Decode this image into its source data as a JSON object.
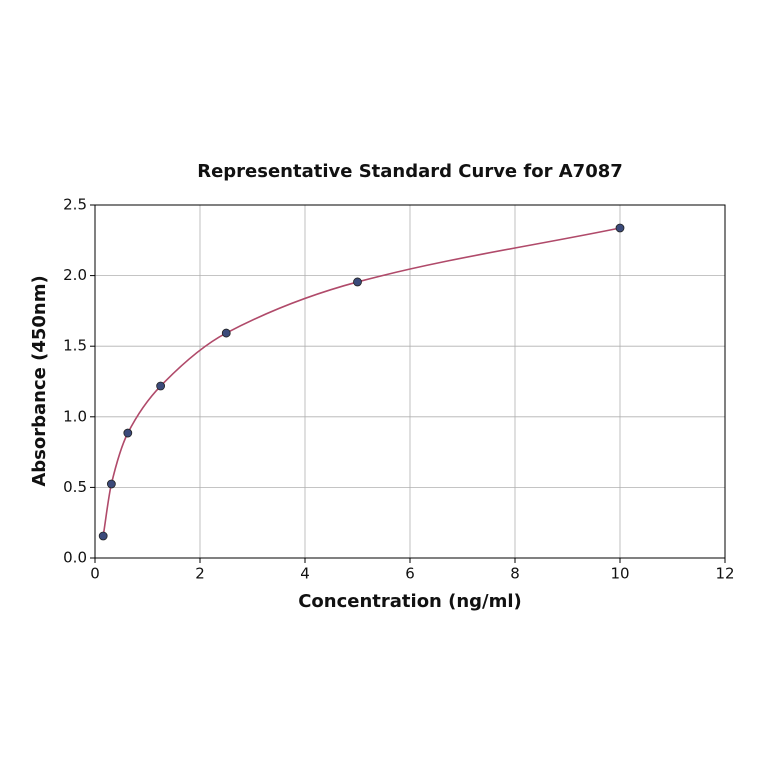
{
  "chart_data": {
    "type": "scatter",
    "title": "Representative Standard Curve for A7087",
    "xlabel": "Concentration (ng/ml)",
    "ylabel": "Absorbance (450nm)",
    "x": [
      0.156,
      0.312,
      0.625,
      1.25,
      2.5,
      5,
      10
    ],
    "values": [
      0.156,
      0.524,
      0.885,
      1.218,
      1.593,
      1.955,
      2.337
    ],
    "color": "#3b4a7a",
    "line_color": "#b04a6a",
    "curve": "smooth",
    "xlim": [
      0,
      12
    ],
    "xticks": [
      0,
      2,
      4,
      6,
      8,
      10,
      12
    ],
    "ylim": [
      0,
      2.5
    ],
    "yticks": [
      {
        "value": 0,
        "label": "0.0"
      },
      0.5,
      {
        "value": 1,
        "label": "1.0"
      },
      1.5,
      {
        "value": 2,
        "label": "2.0"
      },
      2.5
    ],
    "grid": true
  }
}
